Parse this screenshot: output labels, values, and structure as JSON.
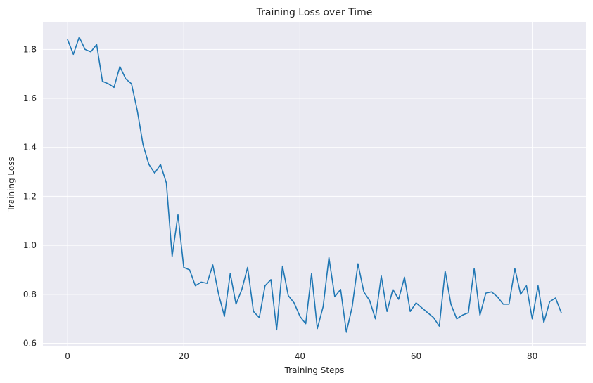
{
  "chart_data": {
    "type": "line",
    "title": "Training Loss over Time",
    "xlabel": "Training Steps",
    "ylabel": "Training Loss",
    "xlim": [
      -4.25,
      89.25
    ],
    "ylim": [
      0.59,
      1.91
    ],
    "xticks": [
      0,
      20,
      40,
      60,
      80
    ],
    "yticks": [
      0.6,
      0.8,
      1.0,
      1.2,
      1.4,
      1.6,
      1.8
    ],
    "xtick_labels": [
      "0",
      "20",
      "40",
      "60",
      "80"
    ],
    "ytick_labels": [
      "0.6",
      "0.8",
      "1.0",
      "1.2",
      "1.4",
      "1.6",
      "1.8"
    ],
    "grid": true,
    "colors": {
      "plot_bg": "#eaeaf2",
      "grid": "#ffffff",
      "line": "#1f77b4"
    },
    "series": [
      {
        "x": [
          0,
          1,
          2,
          3,
          4,
          5,
          6,
          7,
          8,
          9,
          10,
          11,
          12,
          13,
          14,
          15,
          16,
          17,
          18,
          19,
          20,
          21,
          22,
          23,
          24,
          25,
          26,
          27,
          28,
          29,
          30,
          31,
          32,
          33,
          34,
          35,
          36,
          37,
          38,
          39,
          40,
          41,
          42,
          43,
          44,
          45,
          46,
          47,
          48,
          49,
          50,
          51,
          52,
          53,
          54,
          55,
          56,
          57,
          58,
          59,
          60,
          61,
          62,
          63,
          64,
          65,
          66,
          67,
          68,
          69,
          70,
          71,
          72,
          73,
          74,
          75,
          76,
          77,
          78,
          79,
          80,
          81,
          82,
          83,
          84,
          85
        ],
        "values": [
          1.84,
          1.78,
          1.85,
          1.8,
          1.79,
          1.82,
          1.67,
          1.66,
          1.645,
          1.73,
          1.68,
          1.66,
          1.55,
          1.41,
          1.33,
          1.295,
          1.33,
          1.255,
          0.955,
          1.125,
          0.91,
          0.9,
          0.835,
          0.85,
          0.845,
          0.92,
          0.8,
          0.71,
          0.885,
          0.76,
          0.82,
          0.91,
          0.73,
          0.705,
          0.835,
          0.86,
          0.655,
          0.915,
          0.795,
          0.765,
          0.71,
          0.68,
          0.885,
          0.66,
          0.75,
          0.95,
          0.79,
          0.82,
          0.645,
          0.75,
          0.925,
          0.81,
          0.775,
          0.7,
          0.875,
          0.73,
          0.82,
          0.78,
          0.87,
          0.73,
          0.765,
          0.745,
          0.725,
          0.705,
          0.67,
          0.895,
          0.76,
          0.7,
          0.715,
          0.725,
          0.905,
          0.715,
          0.805,
          0.81,
          0.79,
          0.76,
          0.76,
          0.905,
          0.8,
          0.835,
          0.7,
          0.835,
          0.685,
          0.77,
          0.785,
          0.725
        ]
      }
    ]
  }
}
